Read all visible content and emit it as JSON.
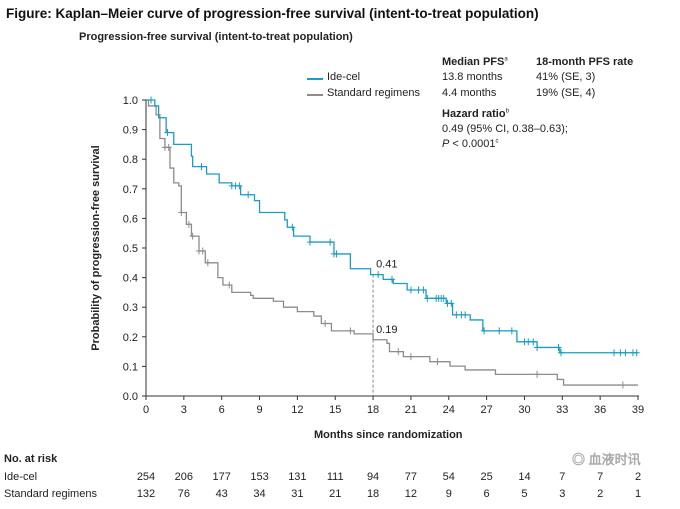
{
  "figure_title": "Figure: Kaplan–Meier curve of progression-free survival (intent-to-treat population)",
  "chart_data": {
    "type": "line",
    "title": "Progression-free survival (intent-to-treat population)",
    "xlabel": "Months since randomization",
    "ylabel": "Probability of progression-free survival",
    "xlim": [
      0,
      39
    ],
    "ylim": [
      0,
      1.0
    ],
    "xticks": [
      "0",
      "3",
      "6",
      "9",
      "12",
      "15",
      "18",
      "21",
      "24",
      "27",
      "30",
      "33",
      "36",
      "39"
    ],
    "yticks": [
      "0.0",
      "0.1",
      "0.2",
      "0.3",
      "0.4",
      "0.5",
      "0.6",
      "0.7",
      "0.8",
      "0.9",
      "1.0"
    ],
    "grid": false,
    "legend_placement": "top-right",
    "series": [
      {
        "name": "Ide-cel",
        "color": "#1a9cc4",
        "x": [
          0,
          0.7,
          1.0,
          1.6,
          2.2,
          3.6,
          3.7,
          4.8,
          5.8,
          6.8,
          7.5,
          8.6,
          9.0,
          11.0,
          11.2,
          11.7,
          13.0,
          14.9,
          16.2,
          17.8,
          18.8,
          19.6,
          20.7,
          22.2,
          23.8,
          24.3,
          25.7,
          26.7,
          29.4,
          31.0,
          32.8,
          39
        ],
        "y": [
          1.0,
          0.98,
          0.94,
          0.89,
          0.85,
          0.81,
          0.775,
          0.75,
          0.72,
          0.71,
          0.68,
          0.66,
          0.62,
          0.595,
          0.57,
          0.54,
          0.52,
          0.48,
          0.43,
          0.41,
          0.394,
          0.38,
          0.358,
          0.33,
          0.313,
          0.274,
          0.257,
          0.22,
          0.183,
          0.164,
          0.146,
          0.146
        ],
        "censored": [
          0.4,
          1.7,
          4.4,
          6.8,
          7.1,
          7.4,
          8.1,
          11.6,
          13.0,
          14.6,
          14.9,
          15.1,
          18.4,
          19.5,
          21.0,
          21.6,
          22.0,
          22.3,
          23.0,
          23.2,
          23.4,
          23.6,
          23.9,
          24.2,
          24.6,
          25.0,
          25.3,
          26.8,
          28.0,
          29.0,
          30.0,
          30.3,
          30.7,
          31.0,
          32.7,
          32.9,
          37.1,
          37.6,
          38.0,
          38.6,
          38.9
        ]
      },
      {
        "name": "Standard regimens",
        "color": "#8c8c8c",
        "x": [
          0,
          0.2,
          0.8,
          1.1,
          1.5,
          1.9,
          2.2,
          2.6,
          2.8,
          3.2,
          3.6,
          4.2,
          4.7,
          5.5,
          5.7,
          6.1,
          6.8,
          8.3,
          8.5,
          10.1,
          10.9,
          12.0,
          13.3,
          13.9,
          14.7,
          16.5,
          18.0,
          19.1,
          19.3,
          20.4,
          22.5,
          24.1,
          25.3,
          27.7,
          32.6,
          33.1,
          39
        ],
        "y": [
          1.0,
          0.98,
          0.95,
          0.87,
          0.84,
          0.77,
          0.72,
          0.71,
          0.62,
          0.58,
          0.54,
          0.49,
          0.45,
          0.45,
          0.4,
          0.375,
          0.35,
          0.34,
          0.33,
          0.32,
          0.3,
          0.285,
          0.27,
          0.245,
          0.22,
          0.21,
          0.19,
          0.178,
          0.15,
          0.133,
          0.116,
          0.101,
          0.088,
          0.073,
          0.056,
          0.037,
          0.037
        ],
        "censored": [
          1.5,
          1.8,
          2.8,
          3.4,
          3.7,
          4.2,
          4.5,
          4.9,
          6.6,
          14.2,
          16.2,
          20.0,
          21.0,
          23.1,
          31.0,
          37.8
        ]
      }
    ],
    "annotations": [
      {
        "month": 18,
        "value": 0.41,
        "label": "0.41"
      },
      {
        "month": 18,
        "value": 0.19,
        "label": "0.19"
      }
    ]
  },
  "legend": {
    "items": [
      "Ide-cel",
      "Standard regimens"
    ],
    "median_header": "Median PFS",
    "median_sup": "a",
    "rate_header": "18-month PFS rate",
    "median_values": [
      "13.8 months",
      "4.4 months"
    ],
    "rate_values": [
      "41% (SE, 3)",
      "19% (SE, 4)"
    ],
    "hr_header": "Hazard ratio",
    "hr_sup": "b",
    "hr_value": "0.49 (95% CI, 0.38–0.63);",
    "p_label": "P",
    "p_value": " < 0.0001",
    "p_sup": "c"
  },
  "risk_table": {
    "title": "No. at risk",
    "rows": [
      {
        "label": "Ide-cel",
        "values": [
          "254",
          "206",
          "177",
          "153",
          "131",
          "111",
          "94",
          "77",
          "54",
          "25",
          "14",
          "7",
          "7",
          "2"
        ]
      },
      {
        "label": "Standard regimens",
        "values": [
          "132",
          "76",
          "43",
          "34",
          "31",
          "21",
          "18",
          "12",
          "9",
          "6",
          "5",
          "3",
          "2",
          "1"
        ]
      }
    ]
  },
  "watermark": "血液时讯"
}
